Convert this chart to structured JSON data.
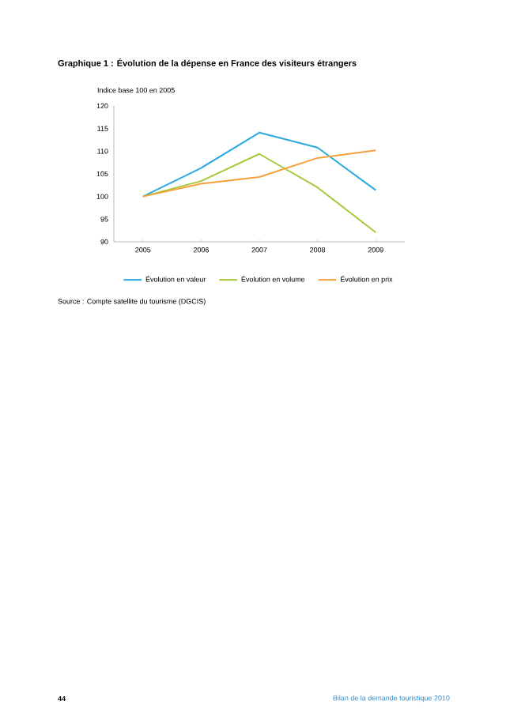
{
  "chart_data": {
    "type": "line",
    "title": "Graphique 1 : Évolution de la dépense en France des visiteurs étrangers",
    "ylabel": "Indice base 100 en 2005",
    "categories": [
      "2005",
      "2006",
      "2007",
      "2008",
      "2009"
    ],
    "series": [
      {
        "name": "Évolution en valeur",
        "color": "#29abe2",
        "values": [
          100,
          106.3,
          114.1,
          110.8,
          101.4
        ]
      },
      {
        "name": "Évolution en volume",
        "color": "#a3c93a",
        "values": [
          100,
          103.4,
          109.4,
          102.0,
          92.1
        ]
      },
      {
        "name": "Évolution en prix",
        "color": "#f7a03c",
        "values": [
          100,
          102.8,
          104.3,
          108.5,
          110.2
        ]
      }
    ],
    "ylim": [
      90,
      120
    ],
    "yticks": [
      90,
      95,
      100,
      105,
      110,
      115,
      120
    ],
    "grid": false,
    "legend": "bottom",
    "marker": "none",
    "line_style": "solid",
    "annotations": [
      "Source : Compte satellite du tourisme (DGCIS)",
      "44",
      "Bilan de la demande touristique 2010"
    ]
  }
}
